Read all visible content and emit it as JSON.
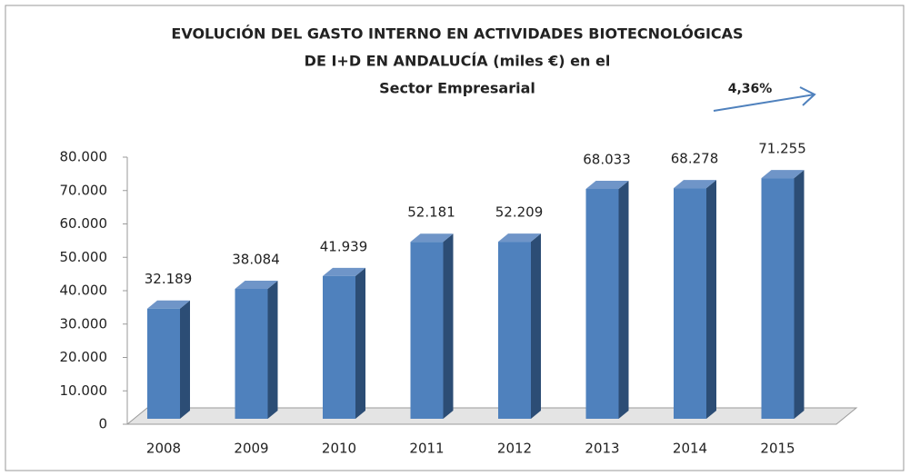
{
  "chart_data": {
    "type": "bar3d",
    "title": [
      "EVOLUCIÓN DEL GASTO INTERNO  EN ACTIVIDADES BIOTECNOLÓGICAS",
      "DE I+D EN ANDALUCÍA  (miles €) en el",
      "Sector Empresarial"
    ],
    "annotation": "4,36%",
    "categories": [
      "2008",
      "2009",
      "2010",
      "2011",
      "2012",
      "2013",
      "2014",
      "2015"
    ],
    "values": [
      32189,
      38084,
      41939,
      52181,
      52209,
      68033,
      68278,
      71255
    ],
    "value_labels": [
      "32.189",
      "38.084",
      "41.939",
      "52.181",
      "52.209",
      "68.033",
      "68.278",
      "71.255"
    ],
    "color": "#4f81bd",
    "ylim": [
      0,
      80000
    ],
    "yticks": [
      0,
      {
        "value": 10000,
        "label": "10.000"
      },
      {
        "value": 20000,
        "label": "20.000"
      },
      {
        "value": 30000,
        "label": "30.000"
      },
      {
        "value": 40000,
        "label": "40.000"
      },
      {
        "value": 50000,
        "label": "50.000"
      },
      {
        "value": 60000,
        "label": "60.000"
      },
      {
        "value": 70000,
        "label": "70.000"
      },
      {
        "value": 80000,
        "label": "80.000"
      }
    ],
    "grid": false
  }
}
